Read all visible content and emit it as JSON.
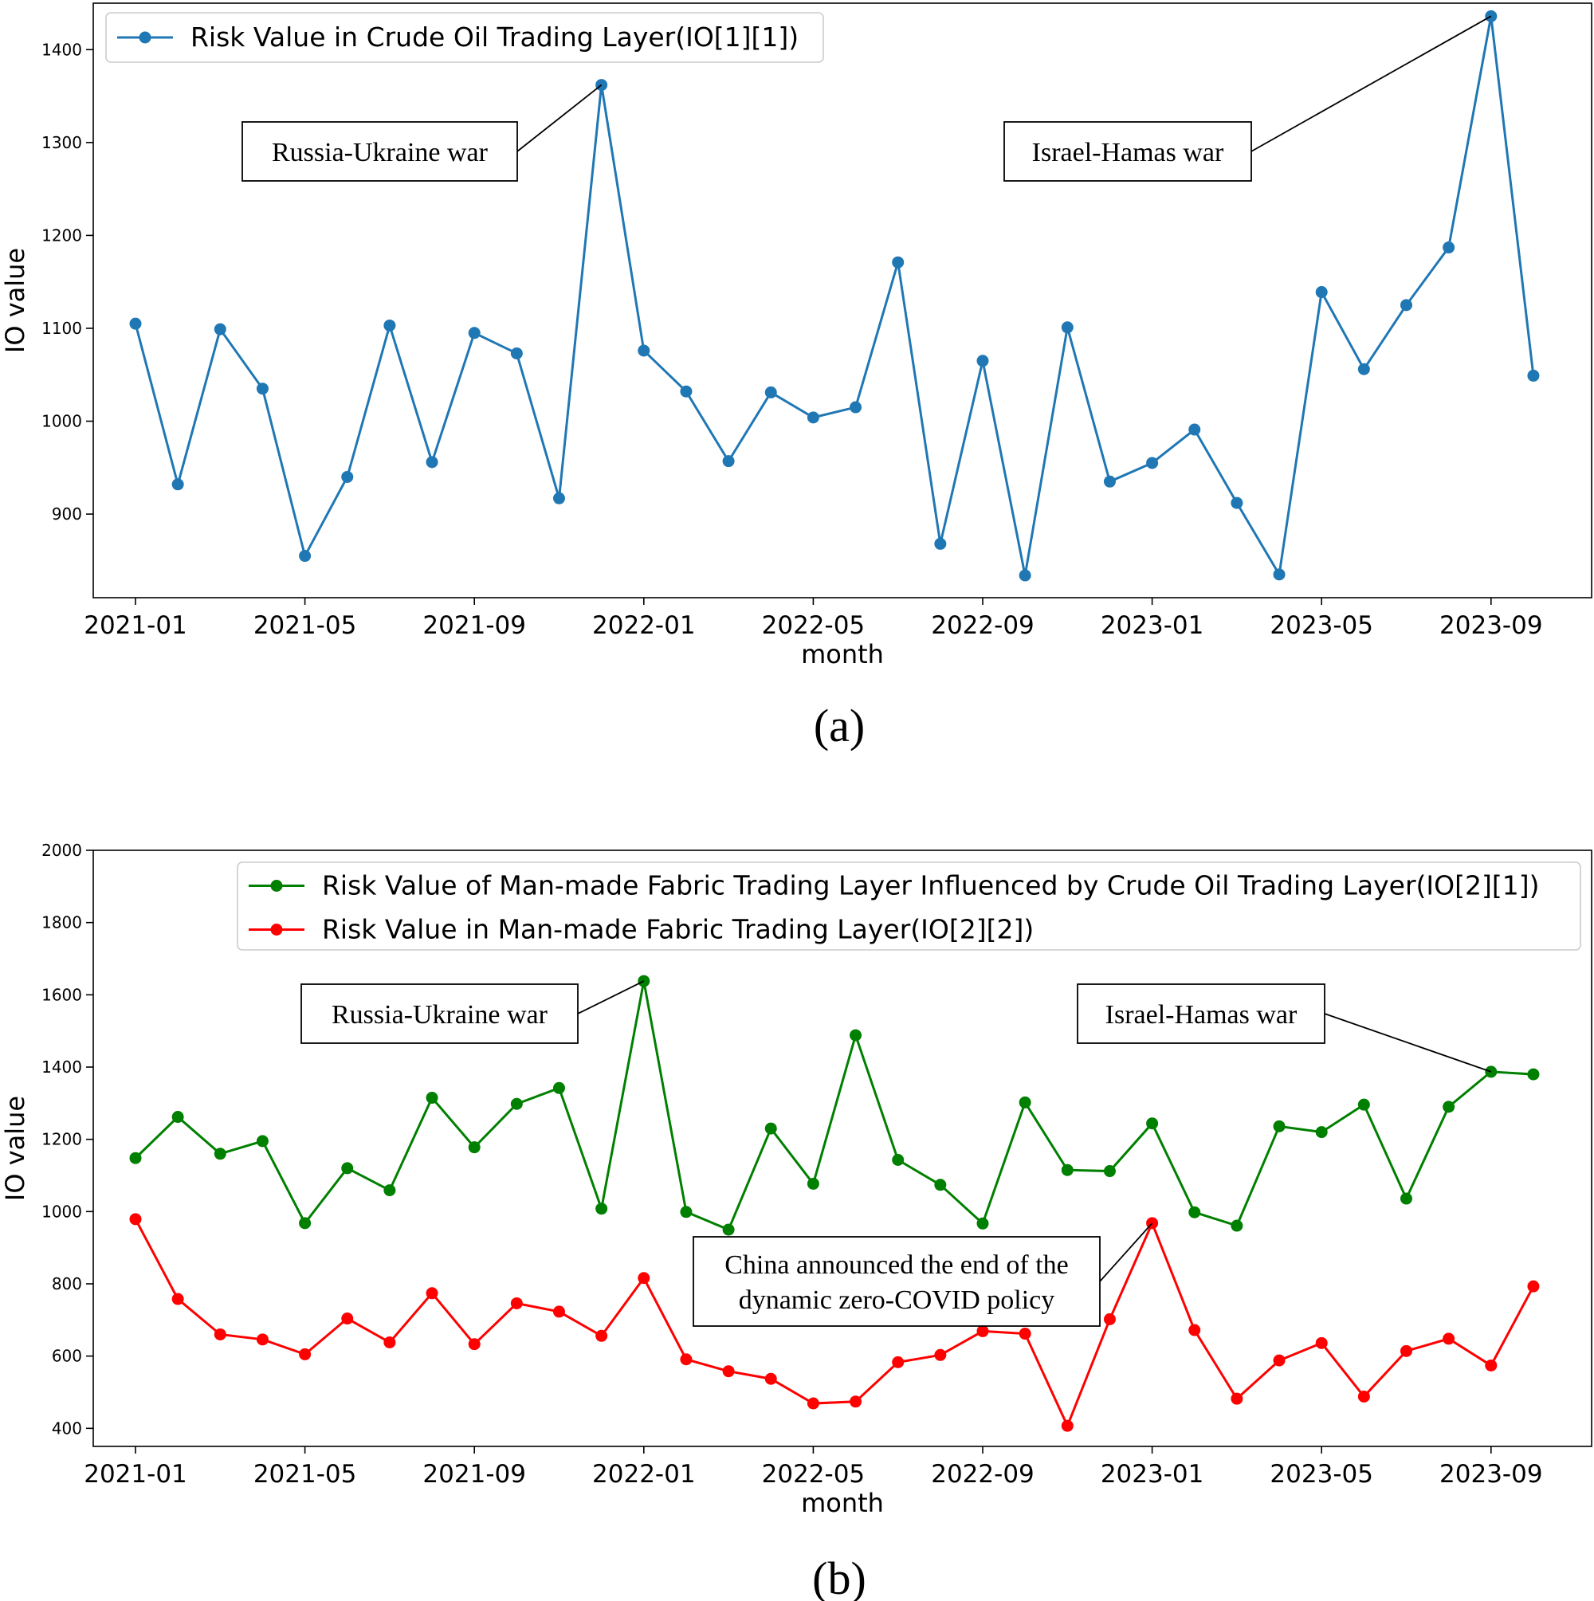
{
  "chart_data": [
    {
      "panel": "(a)",
      "type": "line",
      "xlabel": "month",
      "ylabel": "IO value",
      "ylim": [
        810,
        1450
      ],
      "yticks": [
        900,
        1000,
        1100,
        1200,
        1300,
        1400
      ],
      "xticks": [
        "2021-01",
        "2021-05",
        "2021-09",
        "2022-01",
        "2022-05",
        "2022-09",
        "2023-01",
        "2023-05",
        "2023-09"
      ],
      "x": [
        "2021-01",
        "2021-02",
        "2021-03",
        "2021-04",
        "2021-05",
        "2021-06",
        "2021-07",
        "2021-08",
        "2021-09",
        "2021-10",
        "2021-11",
        "2021-12",
        "2022-01",
        "2022-02",
        "2022-03",
        "2022-04",
        "2022-05",
        "2022-06",
        "2022-07",
        "2022-08",
        "2022-09",
        "2022-10",
        "2022-11",
        "2022-12",
        "2023-01",
        "2023-02",
        "2023-03",
        "2023-04",
        "2023-05",
        "2023-06",
        "2023-07",
        "2023-08",
        "2023-09",
        "2023-10"
      ],
      "series": [
        {
          "name": "Risk Value in Crude Oil Trading Layer(IO[1][1])",
          "color": "#1f77b4",
          "values": [
            1105,
            932,
            1099,
            1035,
            855,
            940,
            1103,
            956,
            1095,
            1073,
            917,
            1362,
            1076,
            1032,
            957,
            1031,
            1004,
            1015,
            1171,
            868,
            1065,
            834,
            1101,
            935,
            955,
            991,
            912,
            835,
            1139,
            1056,
            1125,
            1187,
            1436,
            1049
          ]
        }
      ],
      "legend": "top-left",
      "grid": false,
      "annotations": [
        {
          "text": "Russia-Ukraine war",
          "x": "2021-12",
          "y": 1362
        },
        {
          "text": "Israel-Hamas war",
          "x": "2023-09",
          "y": 1436
        }
      ],
      "caption": "(a)"
    },
    {
      "panel": "(b)",
      "type": "line",
      "xlabel": "month",
      "ylabel": "IO value",
      "ylim": [
        350,
        2000
      ],
      "yticks": [
        400,
        600,
        800,
        1000,
        1200,
        1400,
        1600,
        1800,
        2000
      ],
      "xticks": [
        "2021-01",
        "2021-05",
        "2021-09",
        "2022-01",
        "2022-05",
        "2022-09",
        "2023-01",
        "2023-05",
        "2023-09"
      ],
      "x": [
        "2021-01",
        "2021-02",
        "2021-03",
        "2021-04",
        "2021-05",
        "2021-06",
        "2021-07",
        "2021-08",
        "2021-09",
        "2021-10",
        "2021-11",
        "2021-12",
        "2022-01",
        "2022-02",
        "2022-03",
        "2022-04",
        "2022-05",
        "2022-06",
        "2022-07",
        "2022-08",
        "2022-09",
        "2022-10",
        "2022-11",
        "2022-12",
        "2023-01",
        "2023-02",
        "2023-03",
        "2023-04",
        "2023-05",
        "2023-06",
        "2023-07",
        "2023-08",
        "2023-09",
        "2023-10"
      ],
      "series": [
        {
          "name": "Risk Value of Man-made Fabric Trading Layer Influenced by Crude Oil Trading Layer(IO[2][1])",
          "color": "#008000",
          "values": [
            1148,
            1262,
            1160,
            1195,
            968,
            1120,
            1059,
            1315,
            1178,
            1298,
            1342,
            1008,
            1638,
            999,
            950,
            1230,
            1077,
            1488,
            1143,
            1074,
            967,
            1302,
            1115,
            1112,
            1244,
            998,
            961,
            1236,
            1220,
            1296,
            1036,
            1290,
            1387,
            1380
          ]
        },
        {
          "name": "Risk Value in Man-made Fabric Trading Layer(IO[2][2])",
          "color": "#ff0000",
          "values": [
            979,
            758,
            660,
            646,
            605,
            704,
            638,
            774,
            633,
            746,
            723,
            656,
            816,
            591,
            558,
            537,
            469,
            474,
            583,
            603,
            669,
            662,
            407,
            702,
            968,
            672,
            482,
            588,
            636,
            488,
            614,
            648,
            574,
            793
          ]
        }
      ],
      "legend": "top-right",
      "grid": false,
      "annotations": [
        {
          "text": "Russia-Ukraine war",
          "x": "2022-01",
          "y": 1638
        },
        {
          "text": "Israel-Hamas war",
          "x": "2023-09",
          "y": 1387
        },
        {
          "text": "China announced the end of the dynamic zero-COVID policy",
          "lines": [
            "China announced the end of the",
            "dynamic zero-COVID policy"
          ],
          "x": "2023-01",
          "y": 968
        }
      ],
      "caption": "(b)"
    }
  ]
}
